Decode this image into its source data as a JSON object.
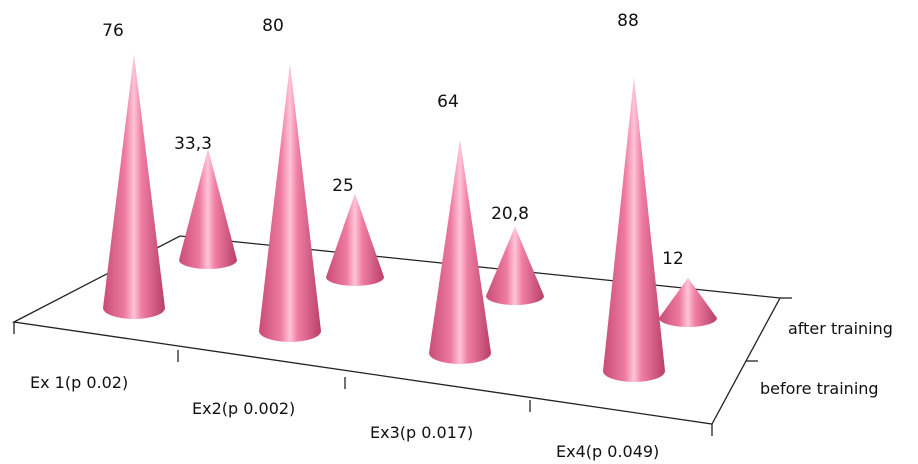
{
  "chart_data": {
    "type": "bar",
    "shape": "3d-cone",
    "categories": [
      "Ex 1(p 0.02)",
      "Ex2(p 0.002)",
      "Ex3(p 0.017)",
      "Ex4(p 0.049)"
    ],
    "series": [
      {
        "name": "before training",
        "values": [
          76,
          80,
          64,
          88
        ],
        "labels": [
          "76",
          "80",
          "64",
          "88"
        ]
      },
      {
        "name": "after training",
        "values": [
          33.3,
          25,
          20.8,
          12
        ],
        "labels": [
          "33,3",
          "25",
          "20,8",
          "12"
        ]
      }
    ],
    "title": "",
    "xlabel": "",
    "ylabel": "",
    "ylim": [
      0,
      100
    ],
    "grid": false,
    "legend": "none",
    "colors": {
      "cone_base": "#e8668f",
      "cone_light": "#ffc2d6",
      "cone_dark": "#b03d63",
      "axis": "#222222"
    }
  }
}
